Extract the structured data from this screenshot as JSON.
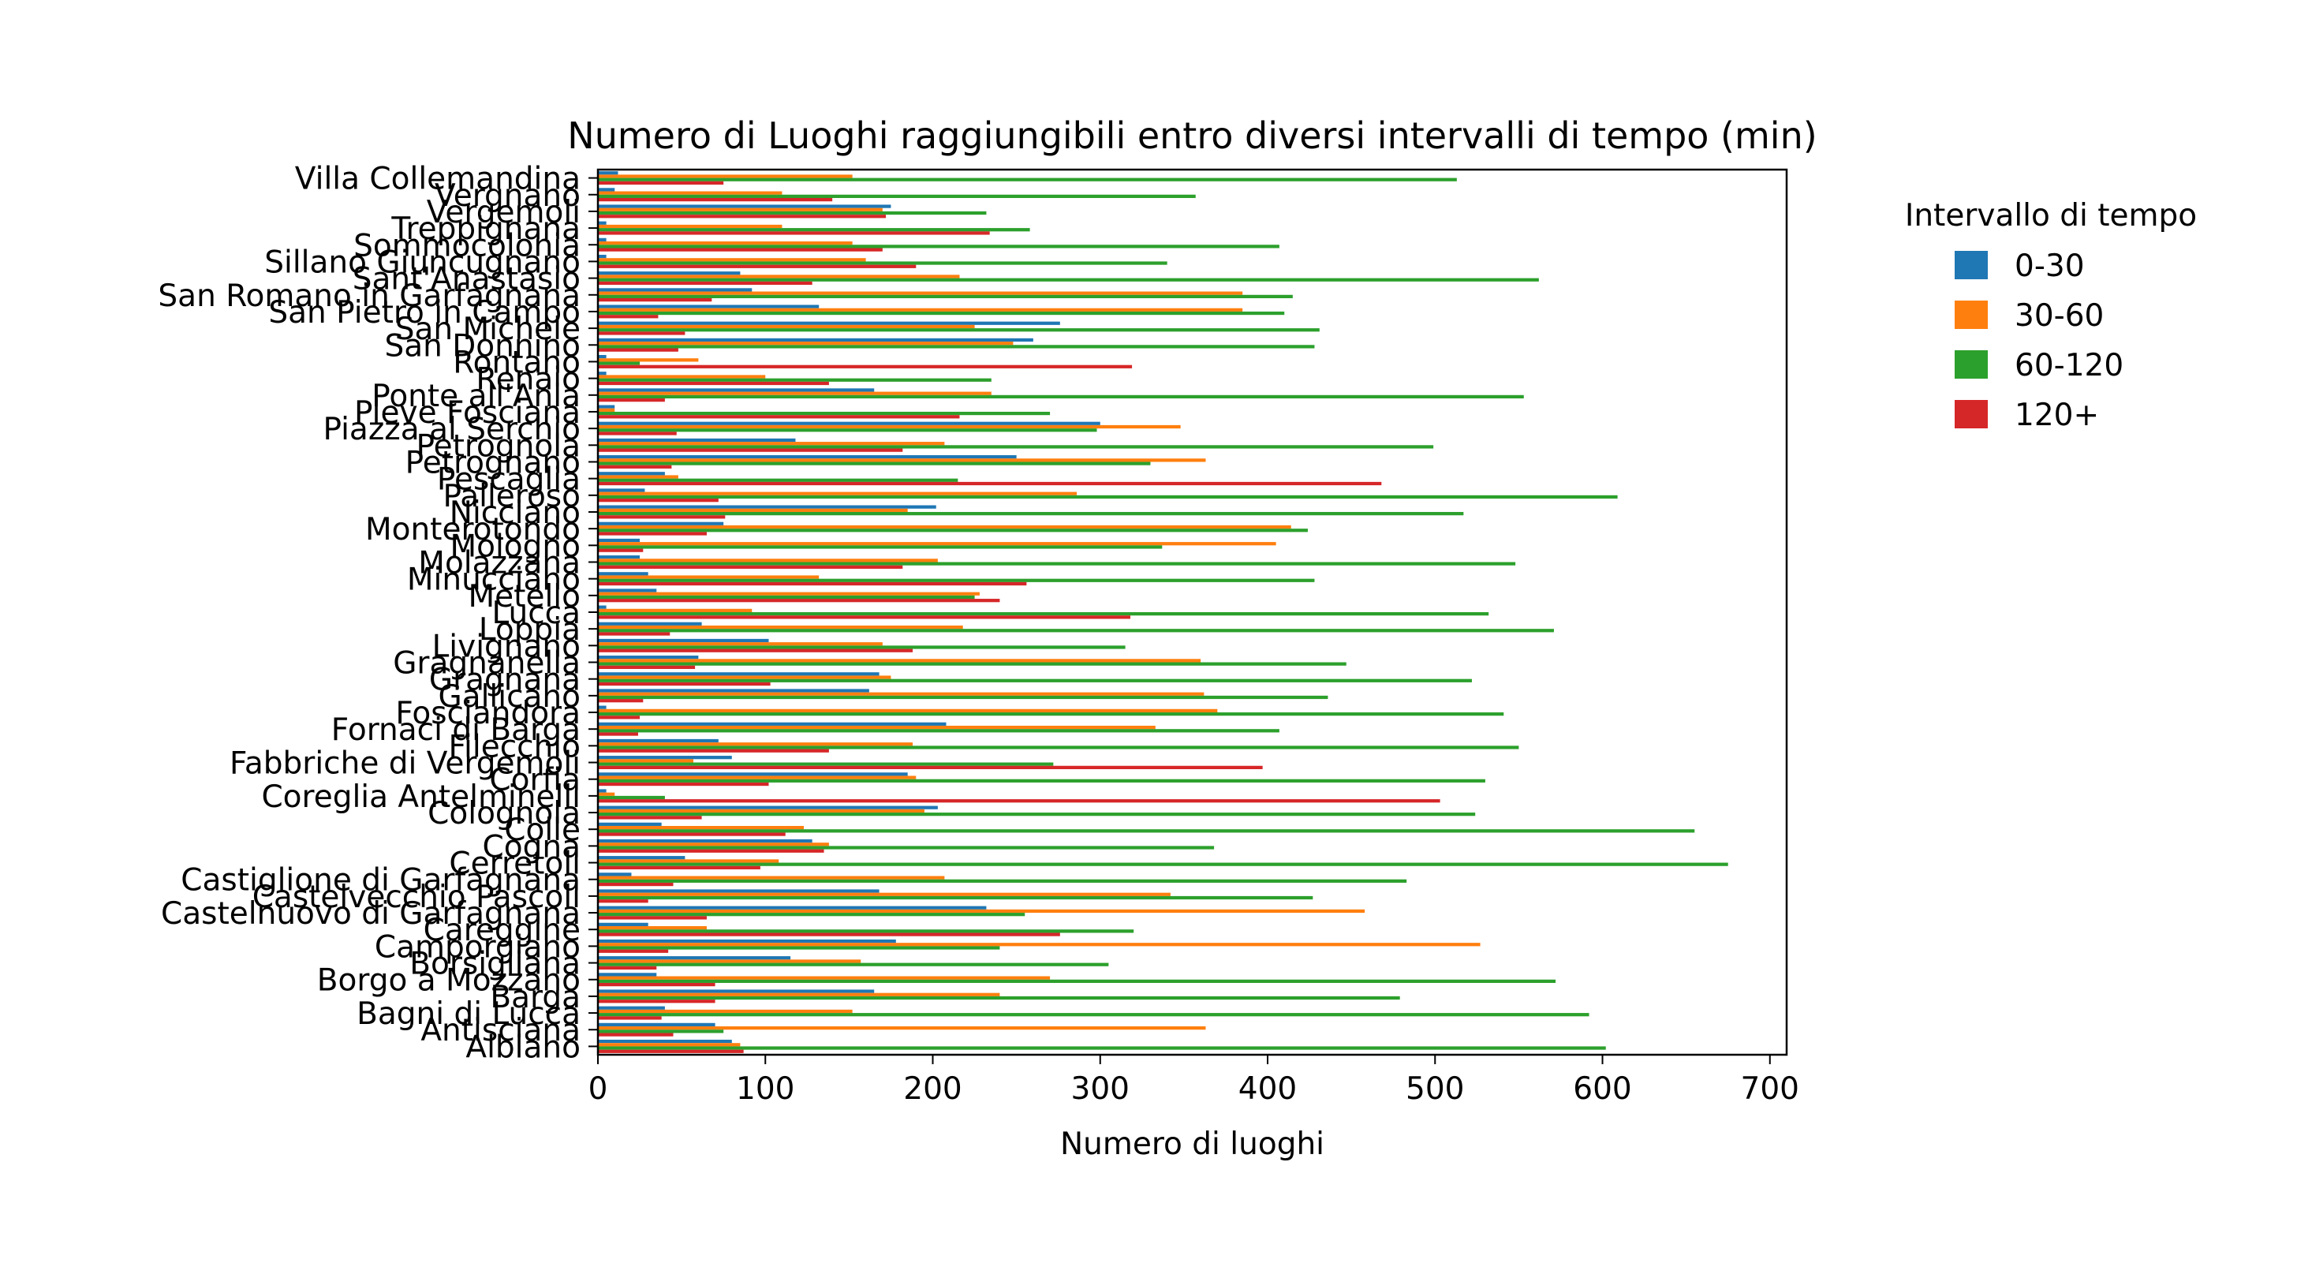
{
  "chart_data": {
    "type": "bar",
    "orientation": "horizontal",
    "title": "Numero di Luoghi raggiungibili entro diversi intervalli di tempo (min)",
    "xlabel": "Numero di luoghi",
    "ylabel": "",
    "xlim": [
      0,
      710
    ],
    "xticks": [
      0,
      100,
      200,
      300,
      400,
      500,
      600,
      700
    ],
    "grid": false,
    "legend": {
      "title": "Intervallo di tempo",
      "placement": "outside-right-top"
    },
    "categories": [
      "Albiano",
      "Antisciana",
      "Bagni di Lucca",
      "Barga",
      "Borgo a Mozzano",
      "Borsigliana",
      "Camporgiano",
      "Careggine",
      "Castelnuovo di Garfagnana",
      "Castelvecchio Pascoli",
      "Castiglione di Garfagnana",
      "Cerretoli",
      "Cogna",
      "Colle",
      "Colognola",
      "Coreglia Antelminelli",
      "Corfia",
      "Fabbriche di Vergemoli",
      "Filecchio",
      "Fornaci di Barga",
      "Fosciandora",
      "Gallicano",
      "Gragnana",
      "Gragnanella",
      "Livignano",
      "Loppia",
      "Lucca",
      "Metello",
      "Minucciano",
      "Molazzana",
      "Mologno",
      "Monterotondo",
      "Nicciano",
      "Palleroso",
      "Pescaglia",
      "Petrognano",
      "Petrognola",
      "Piazza al Serchio",
      "Pieve Fosciana",
      "Ponte all'Ania",
      "Renaio",
      "Rontano",
      "San Donnino",
      "San Michele",
      "San Pietro in Campo",
      "San Romano in Garfagnana",
      "Sant'Anastasio",
      "Sillano Giuncugnano",
      "Sommocolonia",
      "Treppignana",
      "Vergemoli",
      "Vergnano",
      "Villa Collemandina"
    ],
    "series": [
      {
        "name": "0-30",
        "color": "#1f77b4",
        "values": [
          80,
          70,
          40,
          165,
          35,
          115,
          178,
          30,
          232,
          168,
          20,
          52,
          128,
          38,
          203,
          5,
          185,
          80,
          72,
          208,
          5,
          162,
          168,
          60,
          102,
          62,
          5,
          35,
          30,
          25,
          25,
          75,
          202,
          28,
          40,
          250,
          118,
          300,
          10,
          165,
          5,
          5,
          260,
          276,
          132,
          92,
          85,
          5,
          5,
          5,
          175,
          10,
          12
        ]
      },
      {
        "name": "30-60",
        "color": "#ff7f0e",
        "values": [
          85,
          363,
          152,
          240,
          270,
          157,
          527,
          65,
          458,
          342,
          207,
          108,
          138,
          123,
          195,
          10,
          190,
          57,
          188,
          333,
          370,
          362,
          175,
          360,
          170,
          218,
          92,
          228,
          132,
          203,
          405,
          414,
          185,
          286,
          48,
          363,
          207,
          348,
          10,
          235,
          100,
          60,
          248,
          225,
          385,
          385,
          216,
          160,
          152,
          110,
          170,
          110,
          152
        ]
      },
      {
        "name": "60-120",
        "color": "#2ca02c",
        "values": [
          602,
          75,
          592,
          479,
          572,
          305,
          240,
          320,
          255,
          427,
          483,
          675,
          368,
          655,
          524,
          40,
          530,
          272,
          550,
          407,
          541,
          436,
          522,
          447,
          315,
          571,
          532,
          225,
          428,
          548,
          337,
          424,
          517,
          609,
          215,
          330,
          499,
          298,
          270,
          553,
          235,
          25,
          428,
          431,
          410,
          415,
          562,
          340,
          407,
          258,
          232,
          357,
          513
        ]
      },
      {
        "name": "120+",
        "color": "#d62728",
        "values": [
          87,
          45,
          38,
          70,
          70,
          35,
          42,
          276,
          65,
          30,
          45,
          97,
          135,
          112,
          62,
          503,
          102,
          397,
          138,
          24,
          25,
          27,
          103,
          58,
          188,
          43,
          318,
          240,
          256,
          182,
          27,
          65,
          76,
          72,
          468,
          44,
          182,
          47,
          216,
          40,
          138,
          319,
          48,
          52,
          36,
          68,
          128,
          190,
          170,
          234,
          172,
          140,
          75
        ]
      }
    ]
  }
}
